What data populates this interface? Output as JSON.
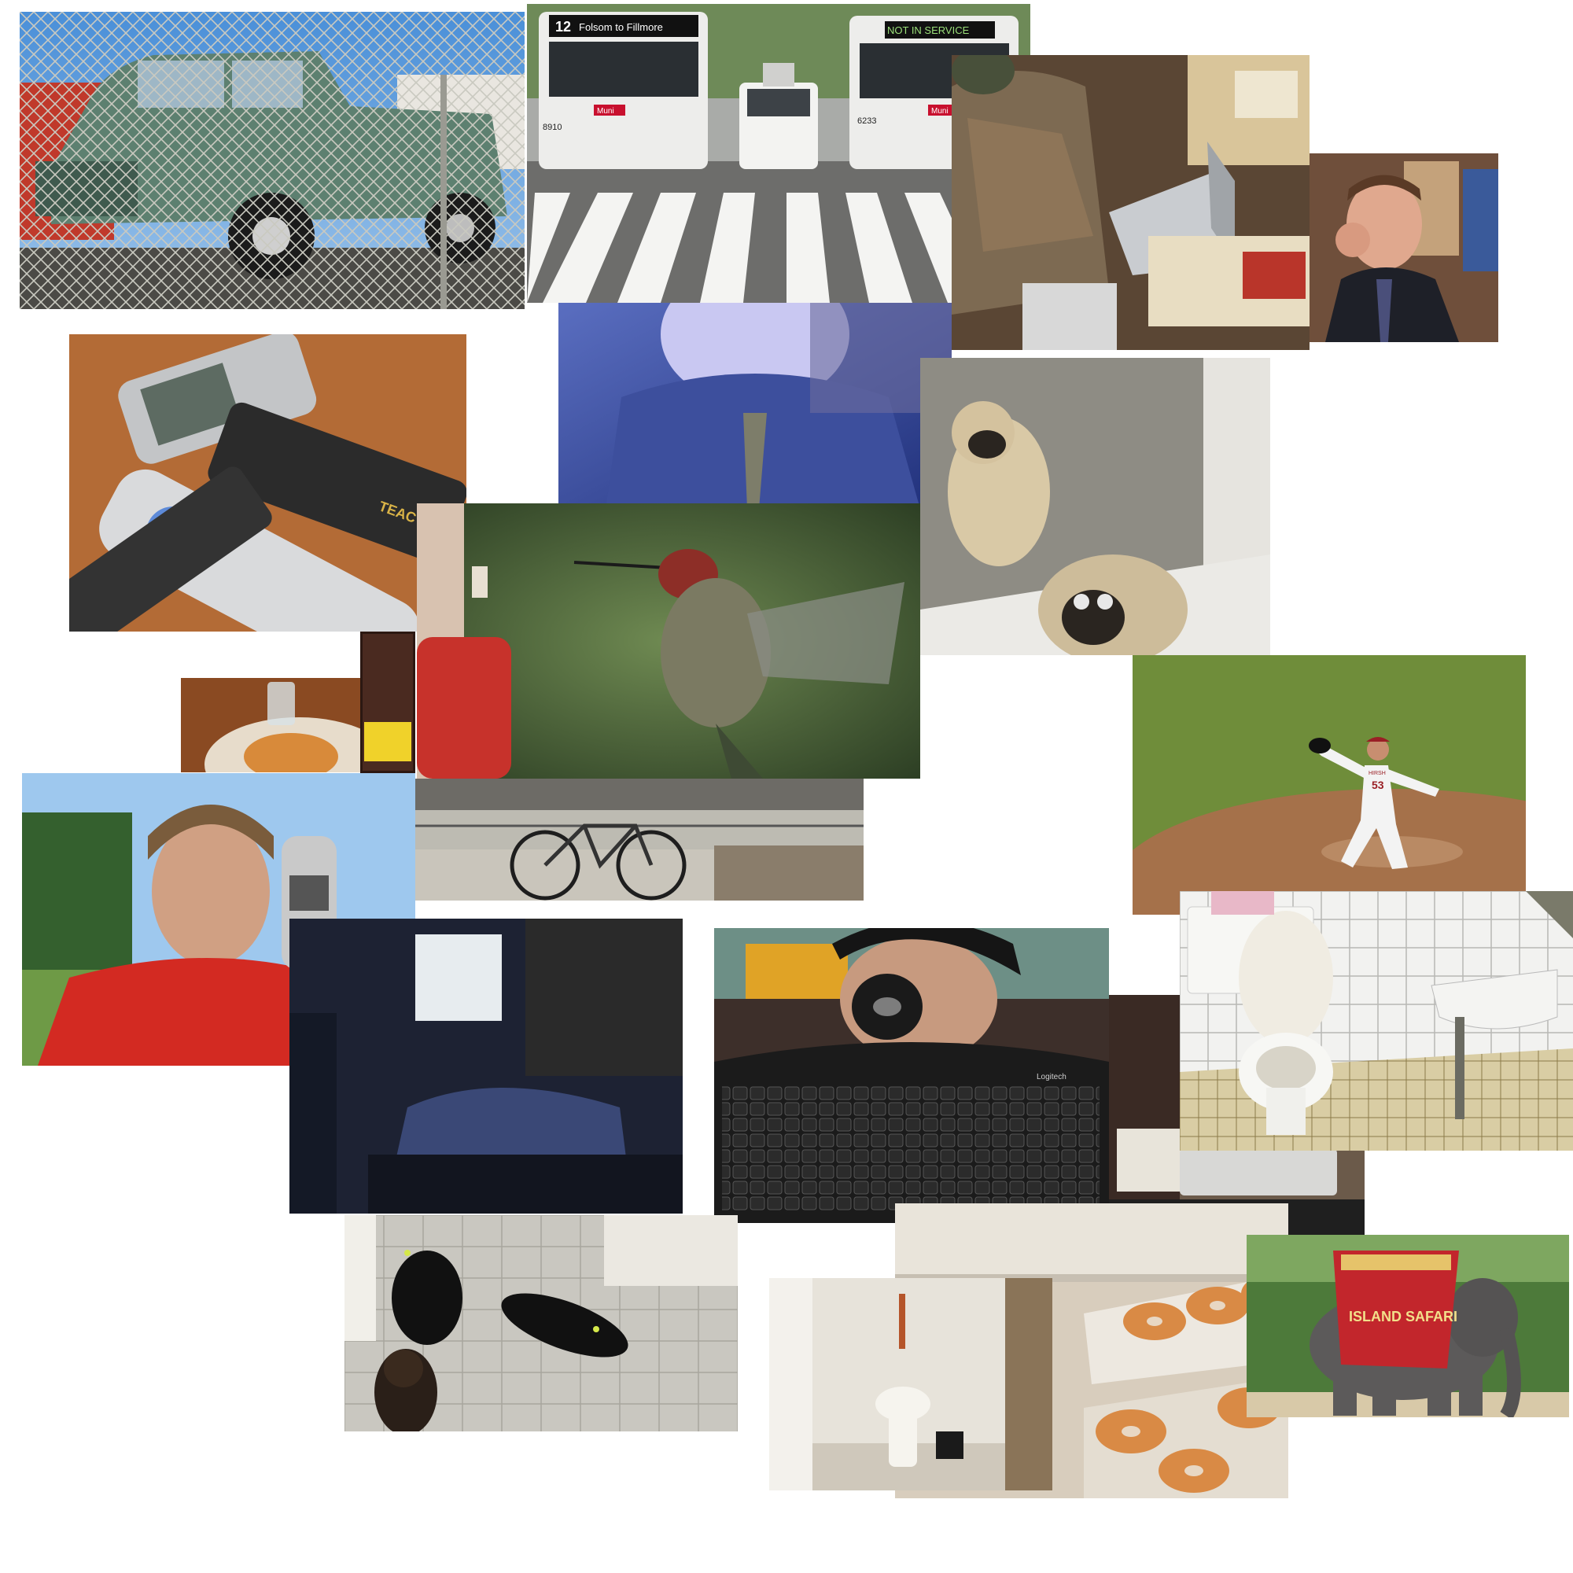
{
  "bus": {
    "left_sign": "Folsom  to Fillmore",
    "left_route": "12",
    "right_sign": "NOT IN SERVICE",
    "left_number": "8910",
    "right_number": "6233",
    "logo": "Muni"
  },
  "remote": {
    "brand": "TEAC"
  },
  "keyboard": {
    "brand": "Logitech"
  },
  "baseball": {
    "jersey_name": "HIRSH",
    "jersey_number": "53"
  },
  "elephant": {
    "banner": "ISLAND SAFARI"
  },
  "colors": {
    "background": "#ffffff",
    "truck_green": "#5d8070",
    "shirt_red": "#d32a22",
    "field_green": "#6f8d3a",
    "dirt": "#a5714a",
    "banner_red": "#c2262c"
  }
}
